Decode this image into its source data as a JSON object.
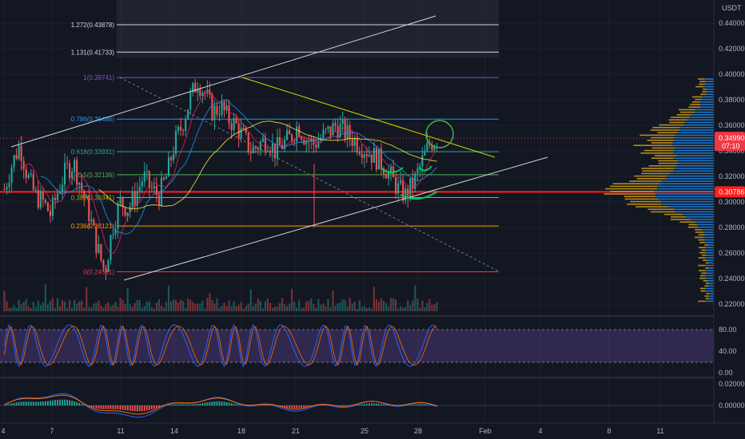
{
  "chart_data": {
    "type": "candlestick",
    "symbol_quote": "USDT",
    "price_axis": {
      "ticks": [
        "0.44000",
        "0.42000",
        "0.40000",
        "0.38000",
        "0.36000",
        "0.34000",
        "0.32000",
        "0.30000",
        "0.28000",
        "0.26000",
        "0.24000",
        "0.22000"
      ],
      "range": [
        0.212,
        0.452
      ]
    },
    "current_price": {
      "value": "0.34990",
      "countdown": "07:10",
      "color": "#f23645"
    },
    "marked_level": {
      "value": "0.30786",
      "color": "#ff1f1f"
    },
    "x_axis": {
      "ticks": [
        "4",
        "7",
        "11",
        "14",
        "18",
        "21",
        "25",
        "28",
        "Feb",
        "4",
        "8",
        "11"
      ]
    },
    "fib_levels": [
      {
        "label": "1.272(0.43878)",
        "price": 0.43878,
        "color": "#d1d4dc"
      },
      {
        "label": "1.131(0.41733)",
        "price": 0.41733,
        "color": "#d1d4dc"
      },
      {
        "label": "1(0.39741)",
        "price": 0.39741,
        "color": "#7e57c2"
      },
      {
        "label": "0.786(0.36486)",
        "price": 0.36486,
        "color": "#2196f3"
      },
      {
        "label": "0.618(0.33931)",
        "price": 0.33931,
        "color": "#26a69a"
      },
      {
        "label": "0.5(0.32136)",
        "price": 0.32136,
        "color": "#4caf50"
      },
      {
        "label": "0.382(0.30341)",
        "price": 0.30341,
        "color": "#b0b000"
      },
      {
        "label": "0.236(0.28121)",
        "price": 0.28121,
        "color": "#ff9800"
      },
      {
        "label": "0(0.24531)",
        "price": 0.24531,
        "color": "#f23645"
      }
    ],
    "price_path": [
      0.31,
      0.33,
      0.345,
      0.32,
      0.305,
      0.3,
      0.29,
      0.31,
      0.325,
      0.33,
      0.31,
      0.29,
      0.265,
      0.245,
      0.28,
      0.3,
      0.295,
      0.305,
      0.32,
      0.31,
      0.305,
      0.32,
      0.345,
      0.36,
      0.38,
      0.395,
      0.385,
      0.37,
      0.375,
      0.365,
      0.36,
      0.35,
      0.34,
      0.345,
      0.35,
      0.34,
      0.345,
      0.35,
      0.36,
      0.35,
      0.345,
      0.35,
      0.355,
      0.36,
      0.355,
      0.35,
      0.345,
      0.34,
      0.335,
      0.33,
      0.32,
      0.31,
      0.305,
      0.315,
      0.33,
      0.345,
      0.35
    ],
    "indicators": {
      "stoch_rsi": {
        "levels": [
          "80.00",
          "40.00",
          "0.00"
        ],
        "band": [
          20,
          80
        ]
      },
      "macd": {
        "levels": [
          "0.02000",
          "0.00000"
        ]
      }
    }
  }
}
